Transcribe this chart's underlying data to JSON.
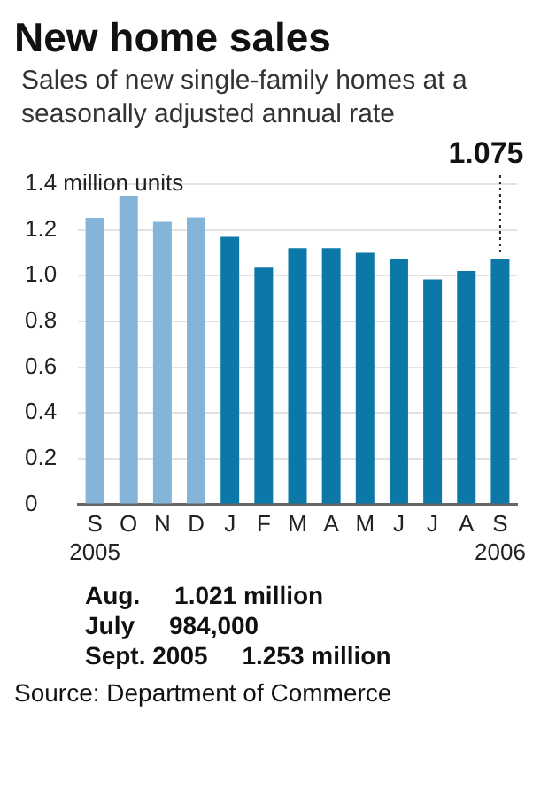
{
  "chart_data": {
    "type": "bar",
    "title": "New home sales",
    "subtitle": "Sales of new single-family homes at a seasonally adjusted annual rate",
    "categories": [
      "S\n2005",
      "O",
      "N",
      "D",
      "J",
      "F",
      "M",
      "A",
      "M",
      "J",
      "J",
      "A",
      "S\n2006"
    ],
    "values": [
      1.253,
      1.35,
      1.235,
      1.255,
      1.17,
      1.035,
      1.12,
      1.12,
      1.1,
      1.075,
      0.984,
      1.021,
      1.075
    ],
    "colors": [
      "#84b4d8",
      "#84b4d8",
      "#84b4d8",
      "#84b4d8",
      "#0b78a8",
      "#0b78a8",
      "#0b78a8",
      "#0b78a8",
      "#0b78a8",
      "#0b78a8",
      "#0b78a8",
      "#0b78a8",
      "#0b78a8"
    ],
    "value_labels": [
      null,
      null,
      null,
      null,
      null,
      null,
      null,
      null,
      null,
      null,
      null,
      null,
      "1.075"
    ],
    "ylim": [
      0,
      1.4
    ],
    "yticks": [
      0,
      {
        "value": 0.2,
        "label": "0.2"
      },
      {
        "value": 0.4,
        "label": "0.4"
      },
      {
        "value": 0.6,
        "label": "0.6"
      },
      {
        "value": 0.8,
        "label": "0.8"
      },
      {
        "value": 1,
        "label": "1.0"
      },
      {
        "value": 1.2,
        "label": "1.2"
      },
      {
        "value": 1.4,
        "label": "1.4 million units"
      }
    ],
    "grid": "y",
    "legend": false,
    "annotations": [
      {
        "text": "Aug.     1.021 million"
      },
      {
        "text": "July     984,000"
      },
      {
        "text": "Sept. 2005     1.253 million"
      },
      "Source: Department of Commerce"
    ]
  }
}
